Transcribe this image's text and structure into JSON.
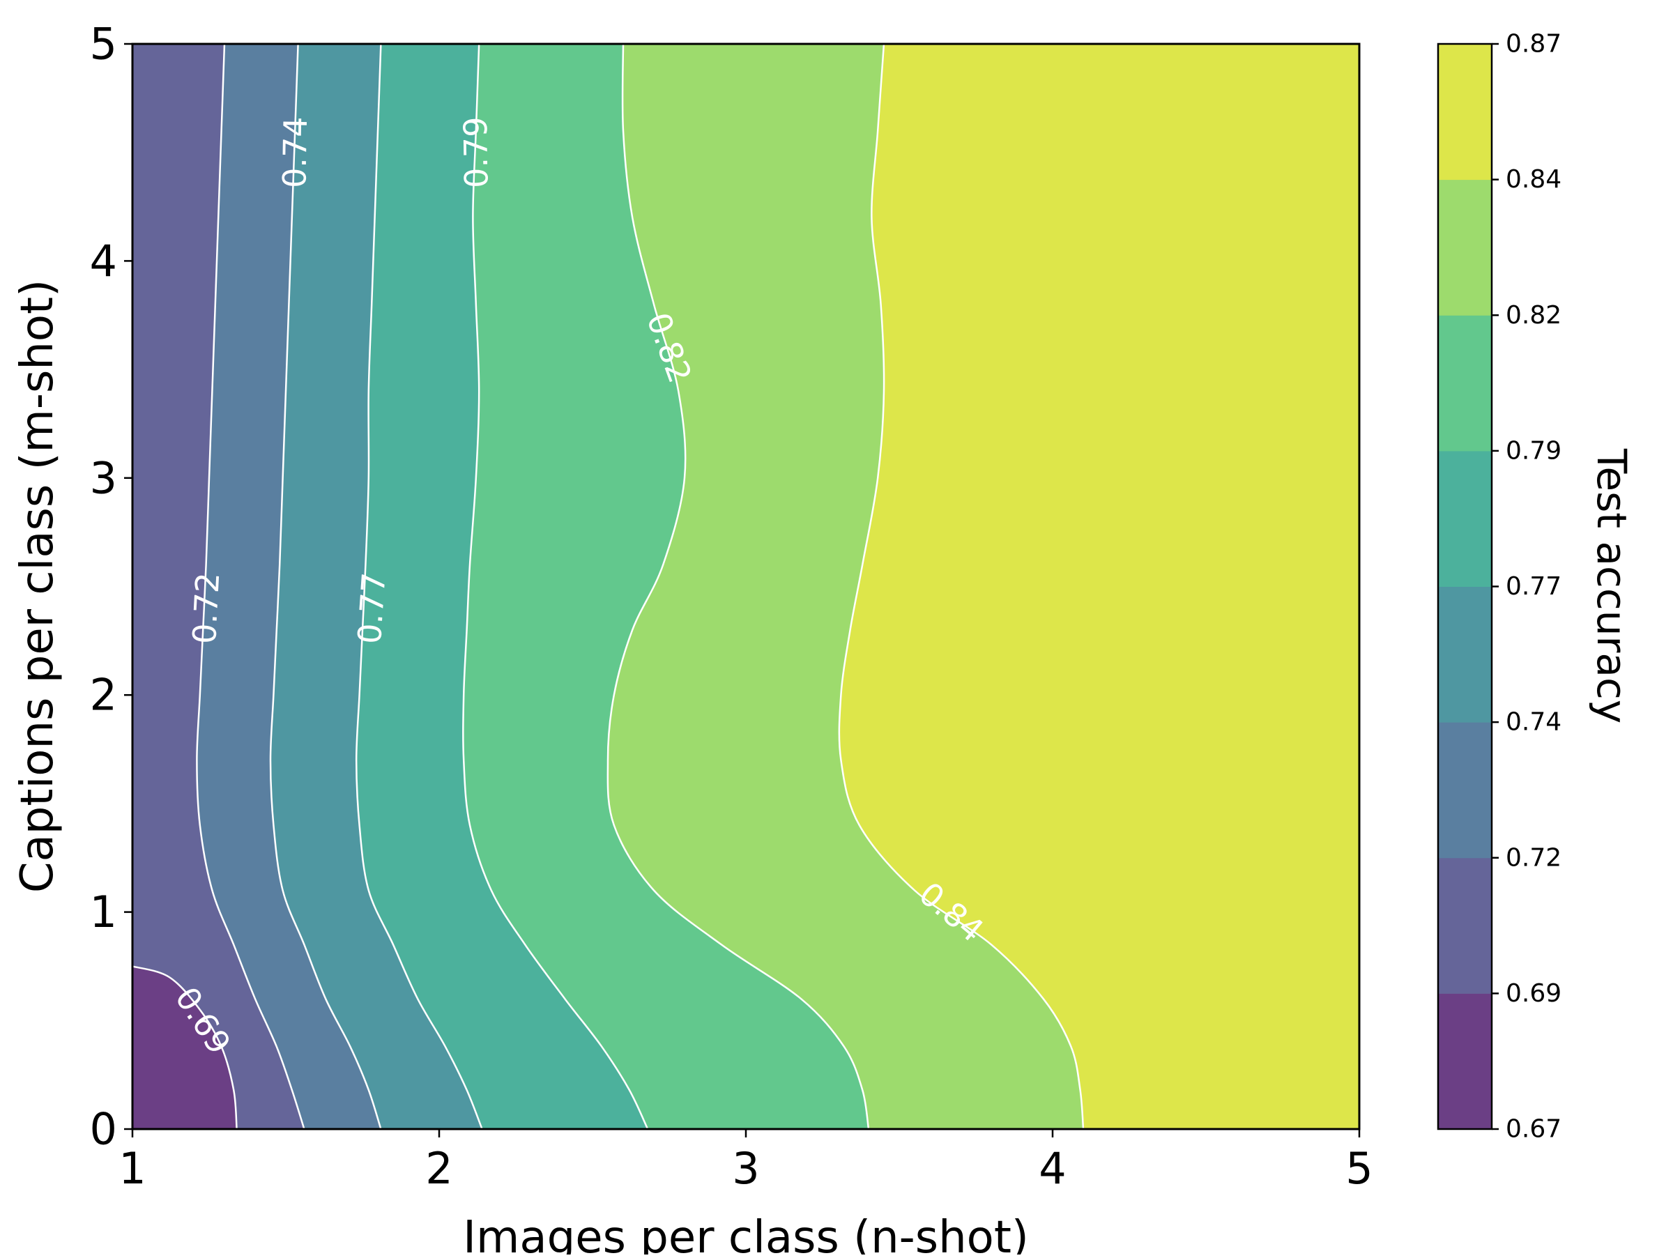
{
  "chart_data": {
    "type": "contour",
    "title": "",
    "xlabel": "Images per class (n-shot)",
    "ylabel": "Captions per class (m-shot)",
    "colorbar_label": "Test accuracy",
    "xlim": [
      1,
      5
    ],
    "ylim": [
      0,
      5
    ],
    "x_ticks": [
      "1",
      "2",
      "3",
      "4",
      "5"
    ],
    "y_ticks": [
      "0",
      "1",
      "2",
      "3",
      "4",
      "5"
    ],
    "colorbar_ticks": [
      "0.67",
      "0.69",
      "0.72",
      "0.74",
      "0.77",
      "0.79",
      "0.82",
      "0.84",
      "0.87"
    ],
    "levels": [
      {
        "name": "0.67-0.69",
        "color": "#6b3f85"
      },
      {
        "name": "0.69-0.72",
        "color": "#656599"
      },
      {
        "name": "0.72-0.74",
        "color": "#5a7fa0"
      },
      {
        "name": "0.74-0.77",
        "color": "#4f97a1"
      },
      {
        "name": "0.77-0.79",
        "color": "#4cb19c"
      },
      {
        "name": "0.79-0.82",
        "color": "#62c88d"
      },
      {
        "name": "0.82-0.84",
        "color": "#9ddb6d"
      },
      {
        "name": "0.84-0.87",
        "color": "#dde64a"
      }
    ],
    "contour_lines": [
      {
        "level": "0.69",
        "points": [
          [
            1.0,
            0.75
          ],
          [
            1.12,
            0.7
          ],
          [
            1.22,
            0.55
          ],
          [
            1.29,
            0.38
          ],
          [
            1.33,
            0.18
          ],
          [
            1.34,
            0.0
          ]
        ]
      },
      {
        "level": "0.72",
        "points": [
          [
            1.3,
            5.0
          ],
          [
            1.29,
            4.6
          ],
          [
            1.28,
            4.2
          ],
          [
            1.27,
            3.8
          ],
          [
            1.26,
            3.4
          ],
          [
            1.25,
            3.0
          ],
          [
            1.24,
            2.6
          ],
          [
            1.23,
            2.3
          ],
          [
            1.22,
            2.0
          ],
          [
            1.21,
            1.7
          ],
          [
            1.22,
            1.4
          ],
          [
            1.26,
            1.1
          ],
          [
            1.33,
            0.85
          ],
          [
            1.4,
            0.6
          ],
          [
            1.47,
            0.38
          ],
          [
            1.52,
            0.18
          ],
          [
            1.56,
            0.0
          ]
        ]
      },
      {
        "level": "0.74",
        "points": [
          [
            1.54,
            5.0
          ],
          [
            1.53,
            4.6
          ],
          [
            1.52,
            4.2
          ],
          [
            1.51,
            3.8
          ],
          [
            1.5,
            3.4
          ],
          [
            1.49,
            3.0
          ],
          [
            1.48,
            2.6
          ],
          [
            1.47,
            2.3
          ],
          [
            1.46,
            2.0
          ],
          [
            1.45,
            1.7
          ],
          [
            1.46,
            1.4
          ],
          [
            1.49,
            1.1
          ],
          [
            1.56,
            0.85
          ],
          [
            1.63,
            0.6
          ],
          [
            1.71,
            0.38
          ],
          [
            1.77,
            0.18
          ],
          [
            1.81,
            0.0
          ]
        ]
      },
      {
        "level": "0.77",
        "points": [
          [
            1.81,
            5.0
          ],
          [
            1.8,
            4.6
          ],
          [
            1.79,
            4.2
          ],
          [
            1.78,
            3.8
          ],
          [
            1.77,
            3.4
          ],
          [
            1.77,
            3.0
          ],
          [
            1.76,
            2.6
          ],
          [
            1.75,
            2.3
          ],
          [
            1.74,
            2.0
          ],
          [
            1.73,
            1.7
          ],
          [
            1.74,
            1.4
          ],
          [
            1.77,
            1.1
          ],
          [
            1.85,
            0.85
          ],
          [
            1.93,
            0.6
          ],
          [
            2.02,
            0.38
          ],
          [
            2.09,
            0.18
          ],
          [
            2.14,
            0.0
          ]
        ]
      },
      {
        "level": "0.79",
        "points": [
          [
            2.13,
            5.0
          ],
          [
            2.12,
            4.6
          ],
          [
            2.11,
            4.2
          ],
          [
            2.12,
            3.8
          ],
          [
            2.13,
            3.4
          ],
          [
            2.12,
            3.0
          ],
          [
            2.1,
            2.6
          ],
          [
            2.09,
            2.3
          ],
          [
            2.08,
            2.0
          ],
          [
            2.08,
            1.7
          ],
          [
            2.1,
            1.4
          ],
          [
            2.17,
            1.1
          ],
          [
            2.28,
            0.85
          ],
          [
            2.41,
            0.6
          ],
          [
            2.53,
            0.38
          ],
          [
            2.62,
            0.18
          ],
          [
            2.68,
            0.0
          ]
        ]
      },
      {
        "level": "0.82",
        "points": [
          [
            2.6,
            5.0
          ],
          [
            2.6,
            4.6
          ],
          [
            2.63,
            4.2
          ],
          [
            2.7,
            3.8
          ],
          [
            2.78,
            3.4
          ],
          [
            2.8,
            3.0
          ],
          [
            2.73,
            2.6
          ],
          [
            2.63,
            2.3
          ],
          [
            2.57,
            2.0
          ],
          [
            2.55,
            1.7
          ],
          [
            2.57,
            1.4
          ],
          [
            2.7,
            1.1
          ],
          [
            2.92,
            0.85
          ],
          [
            3.18,
            0.6
          ],
          [
            3.32,
            0.38
          ],
          [
            3.38,
            0.18
          ],
          [
            3.4,
            0.0
          ]
        ]
      },
      {
        "level": "0.84",
        "points": [
          [
            3.45,
            5.0
          ],
          [
            3.43,
            4.6
          ],
          [
            3.41,
            4.2
          ],
          [
            3.44,
            3.8
          ],
          [
            3.45,
            3.4
          ],
          [
            3.43,
            3.0
          ],
          [
            3.38,
            2.6
          ],
          [
            3.34,
            2.3
          ],
          [
            3.31,
            2.0
          ],
          [
            3.31,
            1.7
          ],
          [
            3.37,
            1.4
          ],
          [
            3.55,
            1.1
          ],
          [
            3.8,
            0.85
          ],
          [
            3.97,
            0.6
          ],
          [
            4.06,
            0.38
          ],
          [
            4.09,
            0.18
          ],
          [
            4.1,
            0.0
          ]
        ]
      }
    ],
    "contour_labels": [
      {
        "text": "0.69",
        "x": 1.23,
        "y": 0.5,
        "angle": 57
      },
      {
        "text": "0.72",
        "x": 1.24,
        "y": 2.4,
        "angle": -87
      },
      {
        "text": "0.74",
        "x": 1.53,
        "y": 4.5,
        "angle": -89
      },
      {
        "text": "0.77",
        "x": 1.78,
        "y": 2.4,
        "angle": -86
      },
      {
        "text": "0.79",
        "x": 2.12,
        "y": 4.5,
        "angle": -91
      },
      {
        "text": "0.82",
        "x": 2.75,
        "y": 3.6,
        "angle": 70
      },
      {
        "text": "0.84",
        "x": 3.67,
        "y": 1.0,
        "angle": 40
      }
    ],
    "grid": false,
    "legend": "colorbar-right"
  }
}
